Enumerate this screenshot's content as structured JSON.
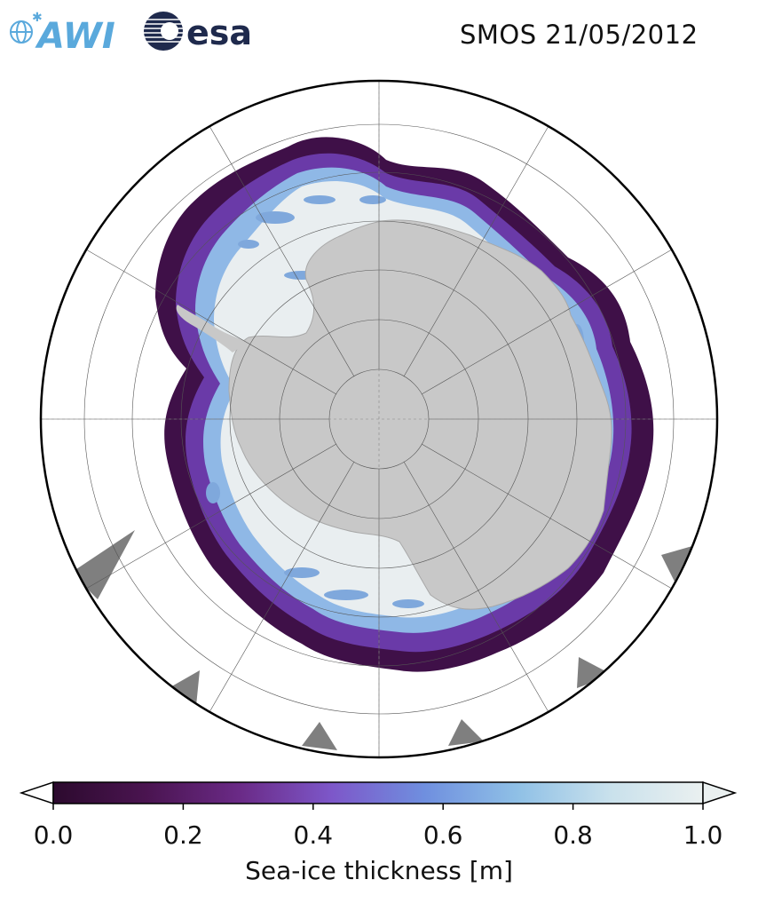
{
  "header": {
    "logo_left_text": "AWI",
    "logo_right_text": "esa",
    "title": "SMOS 21/05/2012"
  },
  "map": {
    "projection": "south-polar-stereographic",
    "land_color": "#c8c8c8",
    "missing_data_color": "#7f7f7f",
    "ocean_color": "#ffffff",
    "gridlines": true
  },
  "chart_data": {
    "type": "heatmap",
    "title": "SMOS 21/05/2012",
    "colorbar": {
      "label": "Sea-ice thickness [m]",
      "range": [
        0.0,
        1.0
      ],
      "ticks": [
        0.0,
        0.2,
        0.4,
        0.6,
        0.8,
        1.0
      ],
      "tick_labels": [
        "0.0",
        "0.2",
        "0.4",
        "0.6",
        "0.8",
        "1.0"
      ],
      "extend": "both",
      "colormap": [
        "#2c0a2e",
        "#4a1450",
        "#6a2a86",
        "#7d57c9",
        "#6f8fdf",
        "#8fc0e6",
        "#c9e1ec",
        "#eaf0f0"
      ]
    }
  }
}
